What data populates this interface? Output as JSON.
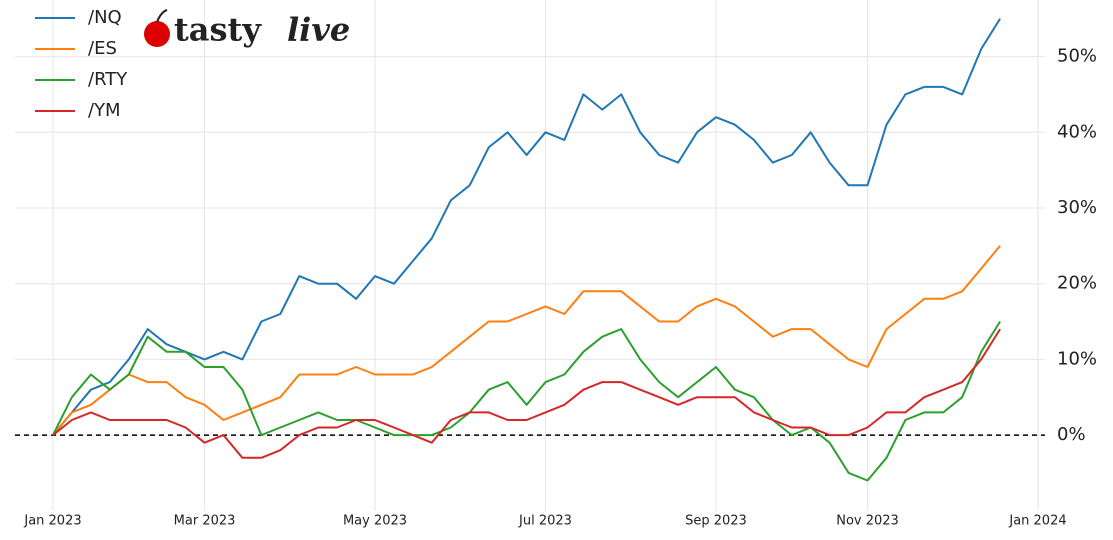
{
  "chart_data": {
    "type": "line",
    "logo": [
      "tasty",
      "live"
    ],
    "categories": [
      "Jan 2023",
      null,
      null,
      null,
      null,
      null,
      null,
      null,
      "Mar 2023",
      null,
      null,
      null,
      null,
      null,
      null,
      null,
      null,
      "May 2023",
      null,
      null,
      null,
      null,
      null,
      null,
      null,
      null,
      "Jul 2023",
      null,
      null,
      null,
      null,
      null,
      null,
      null,
      null,
      "Sep 2023",
      null,
      null,
      null,
      null,
      null,
      null,
      null,
      "Nov 2023",
      null,
      null,
      null,
      null,
      null,
      null,
      null,
      null,
      "Jan 2024"
    ],
    "series": [
      {
        "name": "/NQ",
        "color": "#1f77b4",
        "values": [
          0,
          3,
          6,
          7,
          10,
          14,
          12,
          11,
          10,
          11,
          10,
          15,
          16,
          21,
          20,
          20,
          18,
          21,
          20,
          23,
          26,
          31,
          33,
          38,
          40,
          37,
          40,
          39,
          45,
          43,
          45,
          40,
          37,
          36,
          40,
          42,
          41,
          39,
          36,
          37,
          40,
          36,
          33,
          33,
          41,
          45,
          46,
          46,
          45,
          51,
          55,
          null,
          null
        ]
      },
      {
        "name": "/ES",
        "color": "#ff7f0e",
        "values": [
          0,
          3,
          4,
          6,
          8,
          7,
          7,
          5,
          4,
          2,
          3,
          4,
          5,
          8,
          8,
          8,
          9,
          8,
          8,
          8,
          9,
          11,
          13,
          15,
          15,
          16,
          17,
          16,
          19,
          19,
          19,
          17,
          15,
          15,
          17,
          18,
          17,
          15,
          13,
          14,
          14,
          12,
          10,
          9,
          14,
          16,
          18,
          18,
          19,
          22,
          25,
          null,
          null
        ]
      },
      {
        "name": "/RTY",
        "color": "#2ca02c",
        "values": [
          0,
          5,
          8,
          6,
          8,
          13,
          11,
          11,
          9,
          9,
          6,
          0,
          1,
          2,
          3,
          2,
          2,
          1,
          0,
          0,
          0,
          1,
          3,
          6,
          7,
          4,
          7,
          8,
          11,
          13,
          14,
          10,
          7,
          5,
          7,
          9,
          6,
          5,
          2,
          0,
          1,
          -1,
          -5,
          -6,
          -3,
          2,
          3,
          3,
          5,
          11,
          15,
          null,
          null
        ]
      },
      {
        "name": "/YM",
        "color": "#d62728",
        "values": [
          0,
          2,
          3,
          2,
          2,
          2,
          2,
          1,
          -1,
          0,
          -3,
          -3,
          -2,
          0,
          1,
          1,
          2,
          2,
          1,
          0,
          -1,
          2,
          3,
          3,
          2,
          2,
          3,
          4,
          6,
          7,
          7,
          6,
          5,
          4,
          5,
          5,
          5,
          3,
          2,
          1,
          1,
          0,
          0,
          1,
          3,
          3,
          5,
          6,
          7,
          10,
          14,
          null,
          null
        ]
      }
    ],
    "ylim": [
      -10,
      57
    ],
    "yticks": [
      {
        "value": 0,
        "label": "0%"
      },
      {
        "value": 10,
        "label": "10%"
      },
      {
        "value": 20,
        "label": "20%"
      },
      {
        "value": 30,
        "label": "30%"
      },
      {
        "value": 40,
        "label": "40%"
      },
      {
        "value": 50,
        "label": "50%"
      }
    ],
    "hline": 0,
    "grid": true,
    "legend": "upper-left"
  }
}
